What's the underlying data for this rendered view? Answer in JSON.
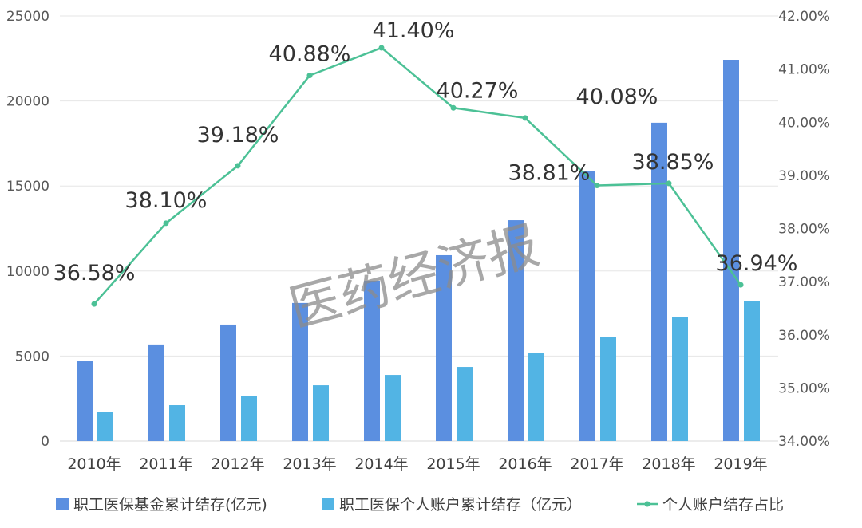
{
  "chart_data": {
    "type": "bar+line",
    "categories": [
      "2010年",
      "2011年",
      "2012年",
      "2013年",
      "2014年",
      "2015年",
      "2016年",
      "2017年",
      "2018年",
      "2019年"
    ],
    "series": [
      {
        "name": "职工医保基金累计结存(亿元)",
        "type": "bar",
        "axis": "left",
        "color": "#5b8fe0",
        "values": [
          4690,
          5680,
          6850,
          8120,
          9430,
          10930,
          12990,
          15900,
          18720,
          22420
        ]
      },
      {
        "name": "职工医保个人账户累计结存（亿元）",
        "type": "bar",
        "axis": "left",
        "color": "#52b4e4",
        "values": [
          1690,
          2110,
          2670,
          3280,
          3890,
          4360,
          5160,
          6100,
          7270,
          8210
        ]
      },
      {
        "name": "个人账户结存占比",
        "type": "line",
        "axis": "right",
        "color": "#4cc196",
        "values": [
          36.58,
          38.1,
          39.18,
          40.88,
          41.4,
          40.27,
          40.08,
          38.81,
          38.85,
          36.94
        ],
        "labels": [
          "36.58%",
          "38.10%",
          "39.18%",
          "40.88%",
          "41.40%",
          "40.27%",
          "40.08%",
          "38.81%",
          "38.85%",
          "36.94%"
        ]
      }
    ],
    "left_axis": {
      "ylim": [
        0,
        25000
      ],
      "ticks": [
        "0",
        "5000",
        "10000",
        "15000",
        "20000",
        "25000"
      ]
    },
    "right_axis": {
      "ylim": [
        34,
        42
      ],
      "ticks": [
        "34.00%",
        "35.00%",
        "36.00%",
        "37.00%",
        "38.00%",
        "39.00%",
        "40.00%",
        "41.00%",
        "42.00%"
      ]
    },
    "grid": true,
    "legend_position": "bottom",
    "watermark": "医药经济报"
  }
}
